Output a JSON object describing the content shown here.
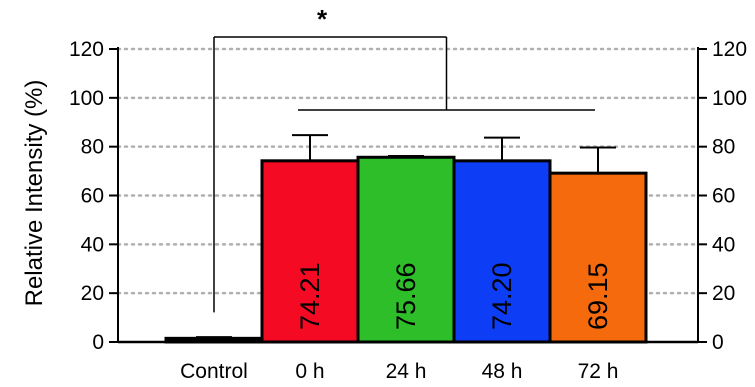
{
  "chart_data": {
    "type": "bar",
    "categories": [
      "Control",
      "0 h",
      "24 h",
      "48 h",
      "72 h"
    ],
    "values": [
      1.5,
      74.21,
      75.66,
      74.2,
      69.15
    ],
    "error_upper": [
      0.5,
      10.5,
      0.5,
      9.5,
      10.5
    ],
    "value_labels": [
      "",
      "74.21",
      "75.66",
      "74.20",
      "69.15"
    ],
    "colors": [
      "#000000",
      "#f50a23",
      "#2ebe2a",
      "#0d3df5",
      "#f56a0d"
    ],
    "xlabel": "",
    "ylabel": "Relative Intensity (%)",
    "ylim": [
      0,
      120
    ],
    "yticks": [
      0,
      20,
      40,
      60,
      80,
      100,
      120
    ],
    "ytick_labels": [
      "0",
      "20",
      "40",
      "60",
      "80",
      "100",
      "120"
    ],
    "grid": true,
    "legend": "none",
    "significance": {
      "label": "*",
      "compares": "Control vs 0 h, 24 h, 48 h, 72 h"
    }
  }
}
